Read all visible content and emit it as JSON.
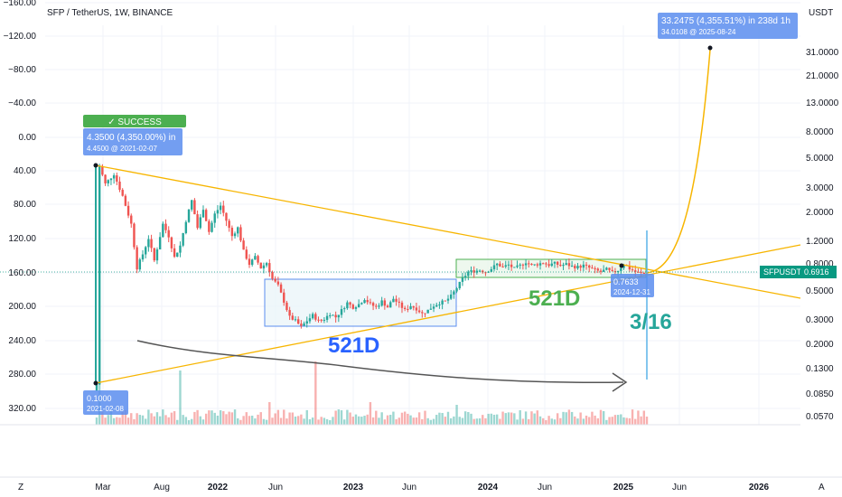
{
  "header": {
    "title": "SFP / TetherUS, 1W, BINANCE",
    "currency": "USDT"
  },
  "colors": {
    "up": "#26a69a",
    "down": "#ef5350",
    "trend": "#f7b500",
    "range_blue": "#5b8def",
    "range_green": "#4caf50",
    "label_blue": "#2962ff",
    "success": "#4caf50",
    "price_tag": "#089981",
    "text_green": "#4caf50",
    "text_blue": "#2962ff",
    "text_teal": "#26a69a"
  },
  "chart_data": {
    "type": "candlestick",
    "symbol": "SFPUSDT",
    "last_price": "0.6916",
    "x_ticks": [
      "Mar",
      "Aug",
      "2022",
      "Jun",
      "2023",
      "Jun",
      "2024",
      "Jun",
      "2025",
      "Jun",
      "2026"
    ],
    "left_axis_ticks": [
      "−160.00",
      "−120.00",
      "−80.00",
      "−40.00",
      "0.00",
      "40.00",
      "80.00",
      "120.00",
      "160.00",
      "200.00",
      "240.00",
      "280.00",
      "320.00"
    ],
    "right_axis_ticks": [
      "31.0000",
      "21.0000",
      "13.0000",
      "8.0000",
      "5.0000",
      "3.0000",
      "2.0000",
      "1.2000",
      "0.8000",
      "0.5000",
      "0.3000",
      "0.2000",
      "0.1300",
      "0.0850",
      "0.0570"
    ],
    "y_scale": "log",
    "price_path": [
      [
        0,
        0.1
      ],
      [
        1,
        4.35
      ],
      [
        3,
        3.2
      ],
      [
        6,
        3.8
      ],
      [
        9,
        2.6
      ],
      [
        12,
        1.6
      ],
      [
        14,
        0.75
      ],
      [
        16,
        0.95
      ],
      [
        18,
        1.25
      ],
      [
        20,
        0.85
      ],
      [
        23,
        1.6
      ],
      [
        25,
        1.3
      ],
      [
        27,
        0.9
      ],
      [
        29,
        1.1
      ],
      [
        31,
        1.7
      ],
      [
        33,
        2.4
      ],
      [
        35,
        1.5
      ],
      [
        37,
        2.1
      ],
      [
        39,
        1.4
      ],
      [
        41,
        1.9
      ],
      [
        43,
        2.2
      ],
      [
        45,
        1.7
      ],
      [
        47,
        1.3
      ],
      [
        49,
        1.5
      ],
      [
        51,
        1.0
      ],
      [
        53,
        0.8
      ],
      [
        55,
        0.9
      ],
      [
        57,
        0.75
      ],
      [
        59,
        0.82
      ],
      [
        61,
        0.62
      ],
      [
        63,
        0.55
      ],
      [
        65,
        0.42
      ],
      [
        67,
        0.32
      ],
      [
        69,
        0.3
      ],
      [
        71,
        0.27
      ],
      [
        73,
        0.3
      ],
      [
        75,
        0.33
      ],
      [
        77,
        0.3
      ],
      [
        79,
        0.31
      ],
      [
        81,
        0.34
      ],
      [
        83,
        0.32
      ],
      [
        85,
        0.36
      ],
      [
        87,
        0.41
      ],
      [
        89,
        0.38
      ],
      [
        91,
        0.4
      ],
      [
        93,
        0.44
      ],
      [
        95,
        0.4
      ],
      [
        97,
        0.38
      ],
      [
        99,
        0.42
      ],
      [
        101,
        0.38
      ],
      [
        103,
        0.44
      ],
      [
        105,
        0.4
      ],
      [
        107,
        0.36
      ],
      [
        109,
        0.39
      ],
      [
        111,
        0.37
      ],
      [
        113,
        0.34
      ],
      [
        115,
        0.36
      ],
      [
        117,
        0.39
      ],
      [
        119,
        0.41
      ],
      [
        121,
        0.42
      ],
      [
        123,
        0.46
      ],
      [
        125,
        0.53
      ],
      [
        127,
        0.62
      ],
      [
        129,
        0.7
      ],
      [
        131,
        0.71
      ],
      [
        133,
        0.72
      ],
      [
        135,
        0.7
      ],
      [
        137,
        0.74
      ],
      [
        139,
        0.8
      ],
      [
        141,
        0.76
      ],
      [
        143,
        0.79
      ],
      [
        145,
        0.74
      ],
      [
        147,
        0.78
      ],
      [
        149,
        0.83
      ],
      [
        151,
        0.78
      ],
      [
        153,
        0.8
      ],
      [
        155,
        0.82
      ],
      [
        157,
        0.79
      ],
      [
        159,
        0.81
      ],
      [
        161,
        0.78
      ],
      [
        163,
        0.8
      ],
      [
        165,
        0.77
      ],
      [
        167,
        0.76
      ],
      [
        169,
        0.78
      ],
      [
        171,
        0.75
      ],
      [
        173,
        0.72
      ],
      [
        175,
        0.7
      ],
      [
        177,
        0.73
      ],
      [
        179,
        0.69
      ],
      [
        181,
        0.72
      ],
      [
        183,
        0.8
      ],
      [
        185,
        0.74
      ],
      [
        187,
        0.7
      ],
      [
        189,
        0.68
      ],
      [
        191,
        0.6916
      ]
    ],
    "volume_spikes": [
      [
        1,
        0.95
      ],
      [
        29,
        0.6
      ],
      [
        60,
        0.25
      ],
      [
        76,
        0.7
      ],
      [
        95,
        0.25
      ],
      [
        125,
        0.22
      ]
    ]
  },
  "annotations": {
    "success_badge": "✓ SUCCESS",
    "top_measure_line1": "4.3500 (4,350.00%) in",
    "top_measure_line2": "4.4500 @ 2021-02-07",
    "bottom_measure_line1": "0.1000",
    "bottom_measure_line2": "2021-02-08",
    "target_line1": "33.2475 (4,355.51%) in 238d 1h",
    "target_line2": "34.0108 @ 2025-08-24",
    "small_tag_line1": "0.7633",
    "small_tag_line2": "2024-12-31",
    "label_521d_blue": "521D",
    "label_521d_green": "521D",
    "label_date": "3/16"
  },
  "footer": {
    "left_icon": "Z",
    "right_icon": "A"
  }
}
